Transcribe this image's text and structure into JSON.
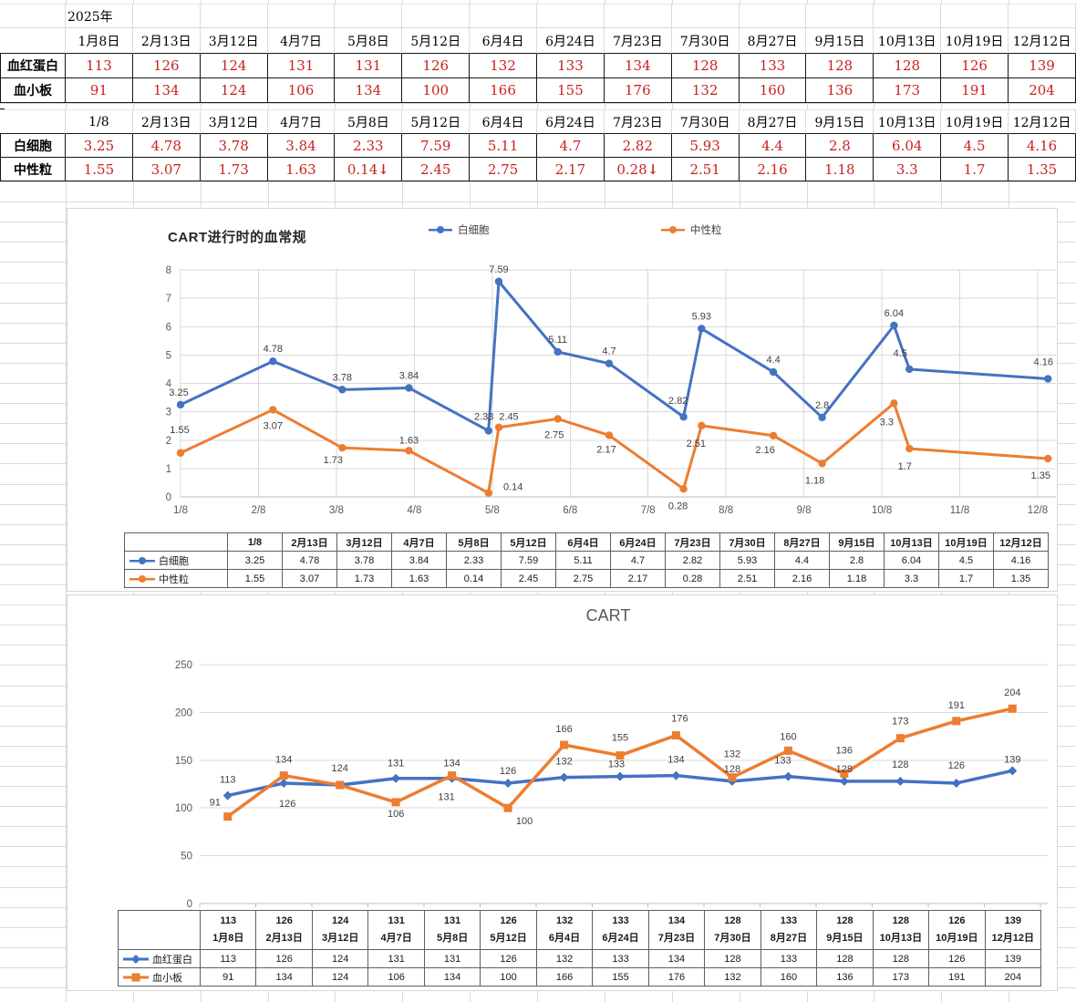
{
  "colors": {
    "series_blue": "#4472C4",
    "series_orange": "#ED7D31",
    "value_red": "#C9211E",
    "grid_line": "#D9D9D9",
    "axis_line": "#BFBFBF",
    "axis_text": "#595959",
    "data_label": "#404040"
  },
  "sheet": {
    "year_label": "2025年"
  },
  "table1": {
    "dates": [
      "1月8日",
      "2月13日",
      "3月12日",
      "4月7日",
      "5月8日",
      "5月12日",
      "6月4日",
      "6月24日",
      "7月23日",
      "7月30日",
      "8月27日",
      "9月15日",
      "10月13日",
      "10月19日",
      "12月12日"
    ],
    "rows": [
      {
        "label": "血红蛋白",
        "values": [
          "113",
          "126",
          "124",
          "131",
          "131",
          "126",
          "132",
          "133",
          "134",
          "128",
          "133",
          "128",
          "128",
          "126",
          "139"
        ]
      },
      {
        "label": "血小板",
        "values": [
          "91",
          "134",
          "124",
          "106",
          "134",
          "100",
          "166",
          "155",
          "176",
          "132",
          "160",
          "136",
          "173",
          "191",
          "204"
        ]
      }
    ]
  },
  "table2": {
    "dates": [
      "1/8",
      "2月13日",
      "3月12日",
      "4月7日",
      "5月8日",
      "5月12日",
      "6月4日",
      "6月24日",
      "7月23日",
      "7月30日",
      "8月27日",
      "9月15日",
      "10月13日",
      "10月19日",
      "12月12日"
    ],
    "rows": [
      {
        "label": "白细胞",
        "values": [
          "3.25",
          "4.78",
          "3.78",
          "3.84",
          "2.33",
          "7.59",
          "5.11",
          "4.7",
          "2.82",
          "5.93",
          "4.4",
          "2.8",
          "6.04",
          "4.5",
          "4.16"
        ]
      },
      {
        "label": "中性粒",
        "values": [
          "1.55",
          "3.07",
          "1.73",
          "1.63",
          "0.14↓",
          "2.45",
          "2.75",
          "2.17",
          "0.28↓",
          "2.51",
          "2.16",
          "1.18",
          "3.3",
          "1.7",
          "1.35"
        ]
      }
    ]
  },
  "chart_data": [
    {
      "type": "line",
      "title": "CART进行时的血常规",
      "x_type": "date",
      "x_tick_labels": [
        "1/8",
        "2/8",
        "3/8",
        "4/8",
        "5/8",
        "6/8",
        "7/8",
        "8/8",
        "9/8",
        "10/8",
        "11/8",
        "12/8"
      ],
      "ylim": [
        0,
        8
      ],
      "y_ticks": [
        0,
        1,
        2,
        3,
        4,
        5,
        6,
        7,
        8
      ],
      "grid": true,
      "legend_position": "top",
      "point_dates": [
        [
          1,
          8
        ],
        [
          2,
          13
        ],
        [
          3,
          12
        ],
        [
          4,
          7
        ],
        [
          5,
          8
        ],
        [
          5,
          12
        ],
        [
          6,
          4
        ],
        [
          6,
          24
        ],
        [
          7,
          23
        ],
        [
          7,
          30
        ],
        [
          8,
          27
        ],
        [
          9,
          15
        ],
        [
          10,
          13
        ],
        [
          10,
          19
        ],
        [
          12,
          12
        ]
      ],
      "table_headers": [
        "1/8",
        "2月13日",
        "3月12日",
        "4月7日",
        "5月8日",
        "5月12日",
        "6月4日",
        "6月24日",
        "7月23日",
        "7月30日",
        "8月27日",
        "9月15日",
        "10月13日",
        "10月19日",
        "12月12日"
      ],
      "series": [
        {
          "name": "白细胞",
          "marker": "circle",
          "values": [
            3.25,
            4.78,
            3.78,
            3.84,
            2.33,
            7.59,
            5.11,
            4.7,
            2.82,
            5.93,
            4.4,
            2.8,
            6.04,
            4.5,
            4.16
          ]
        },
        {
          "name": "中性粒",
          "marker": "circle",
          "values": [
            1.55,
            3.07,
            1.73,
            1.63,
            0.14,
            2.45,
            2.75,
            2.17,
            0.28,
            2.51,
            2.16,
            1.18,
            3.3,
            1.7,
            1.35
          ]
        }
      ]
    },
    {
      "type": "line",
      "title": "CART",
      "x_type": "category",
      "category_top_labels": [
        "113",
        "126",
        "124",
        "131",
        "131",
        "126",
        "132",
        "133",
        "134",
        "128",
        "133",
        "128",
        "128",
        "126",
        "139"
      ],
      "category_labels": [
        "1月8日",
        "2月13日",
        "3月12日",
        "4月7日",
        "5月8日",
        "5月12日",
        "6月4日",
        "6月24日",
        "7月23日",
        "7月30日",
        "8月27日",
        "9月15日",
        "10月13日",
        "10月19日",
        "12月12日"
      ],
      "ylim": [
        0,
        250
      ],
      "y_ticks": [
        0,
        50,
        100,
        150,
        200,
        250
      ],
      "grid": true,
      "legend_position": "table",
      "series": [
        {
          "name": "血红蛋白",
          "marker": "diamond",
          "values": [
            113,
            126,
            124,
            131,
            131,
            126,
            132,
            133,
            134,
            128,
            133,
            128,
            128,
            126,
            139
          ]
        },
        {
          "name": "血小板",
          "marker": "square",
          "values": [
            91,
            134,
            124,
            106,
            134,
            100,
            166,
            155,
            176,
            132,
            160,
            136,
            173,
            191,
            204
          ]
        }
      ]
    }
  ]
}
